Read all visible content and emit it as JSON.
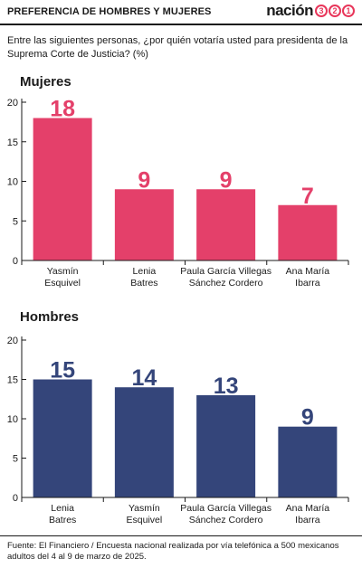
{
  "header": {
    "title": "PREFERENCIA DE HOMBRES Y MUJERES",
    "brand_word": "nación",
    "brand_digits": [
      "3",
      "2",
      "1"
    ]
  },
  "question": "Entre las siguientes personas, ¿por quién votaría usted para presidenta de la Suprema Corte de Justicia? (%)",
  "source": "Fuente: El Financiero / Encuesta nacional realizada por vía telefónica a 500 mexicanos adultos del 4 al 9 de marzo de 2025.",
  "colors": {
    "mujeres": "#e4406a",
    "hombres": "#34457a",
    "accent": "#e8365a"
  },
  "chart_data": [
    {
      "type": "bar",
      "title": "Mujeres",
      "categories": [
        [
          "Yasmín",
          "Esquivel"
        ],
        [
          "Lenia",
          "Batres"
        ],
        [
          "Paula García Villegas",
          "Sánchez Cordero"
        ],
        [
          "Ana María",
          "Ibarra"
        ]
      ],
      "values": [
        18,
        9,
        9,
        7
      ],
      "yticks": [
        0,
        5,
        10,
        15,
        20
      ],
      "ylim": [
        0,
        20
      ],
      "grid": false,
      "color": "#e4406a"
    },
    {
      "type": "bar",
      "title": "Hombres",
      "categories": [
        [
          "Lenia",
          "Batres"
        ],
        [
          "Yasmín",
          "Esquivel"
        ],
        [
          "Paula García Villegas",
          "Sánchez Cordero"
        ],
        [
          "Ana María",
          "Ibarra"
        ]
      ],
      "values": [
        15,
        14,
        13,
        9
      ],
      "yticks": [
        0,
        5,
        10,
        15,
        20
      ],
      "ylim": [
        0,
        20
      ],
      "grid": false,
      "color": "#34457a"
    }
  ]
}
